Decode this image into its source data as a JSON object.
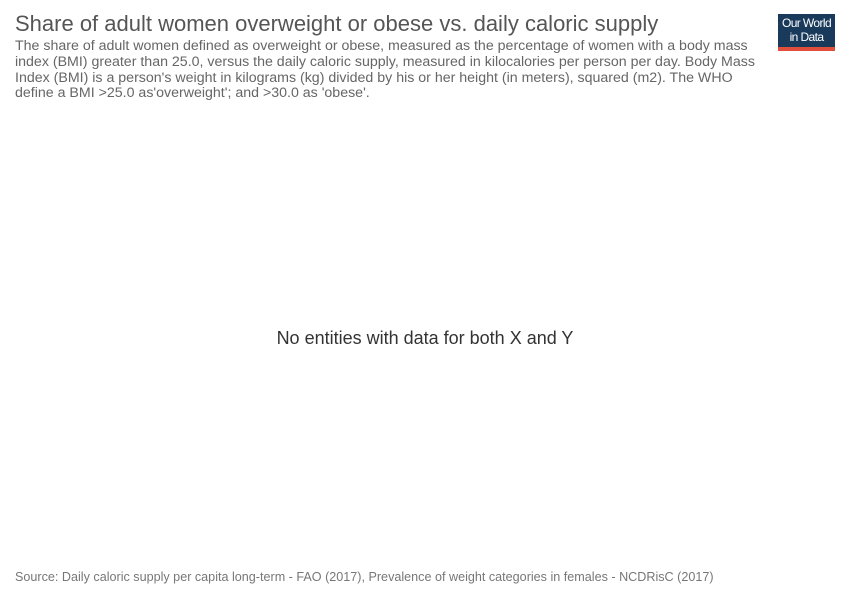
{
  "chart_data": {
    "type": "scatter",
    "title": "Share of adult women overweight or obese vs. daily caloric supply",
    "subtitle": "The share of adult women defined as overweight or obese, measured as the percentage of women with a body mass index (BMI) greater than 25.0, versus the daily caloric supply, measured in kilocalories per person per day. Body Mass Index (BMI) is a person's weight in kilograms (kg) divided by his or her height (in meters), squared (m2). The WHO define a BMI >25.0 as'overweight'; and >30.0 as 'obese'.",
    "message": "No entities with data for both X and Y",
    "series": []
  },
  "logo": {
    "line1": "Our World",
    "line2": "in Data",
    "bg_color": "#1a3a5c",
    "accent_color": "#e24e3c"
  },
  "footer": {
    "source": "Source: Daily caloric supply per capita long-term - FAO (2017), Prevalence of weight categories in females - NCDRisC (2017)"
  }
}
